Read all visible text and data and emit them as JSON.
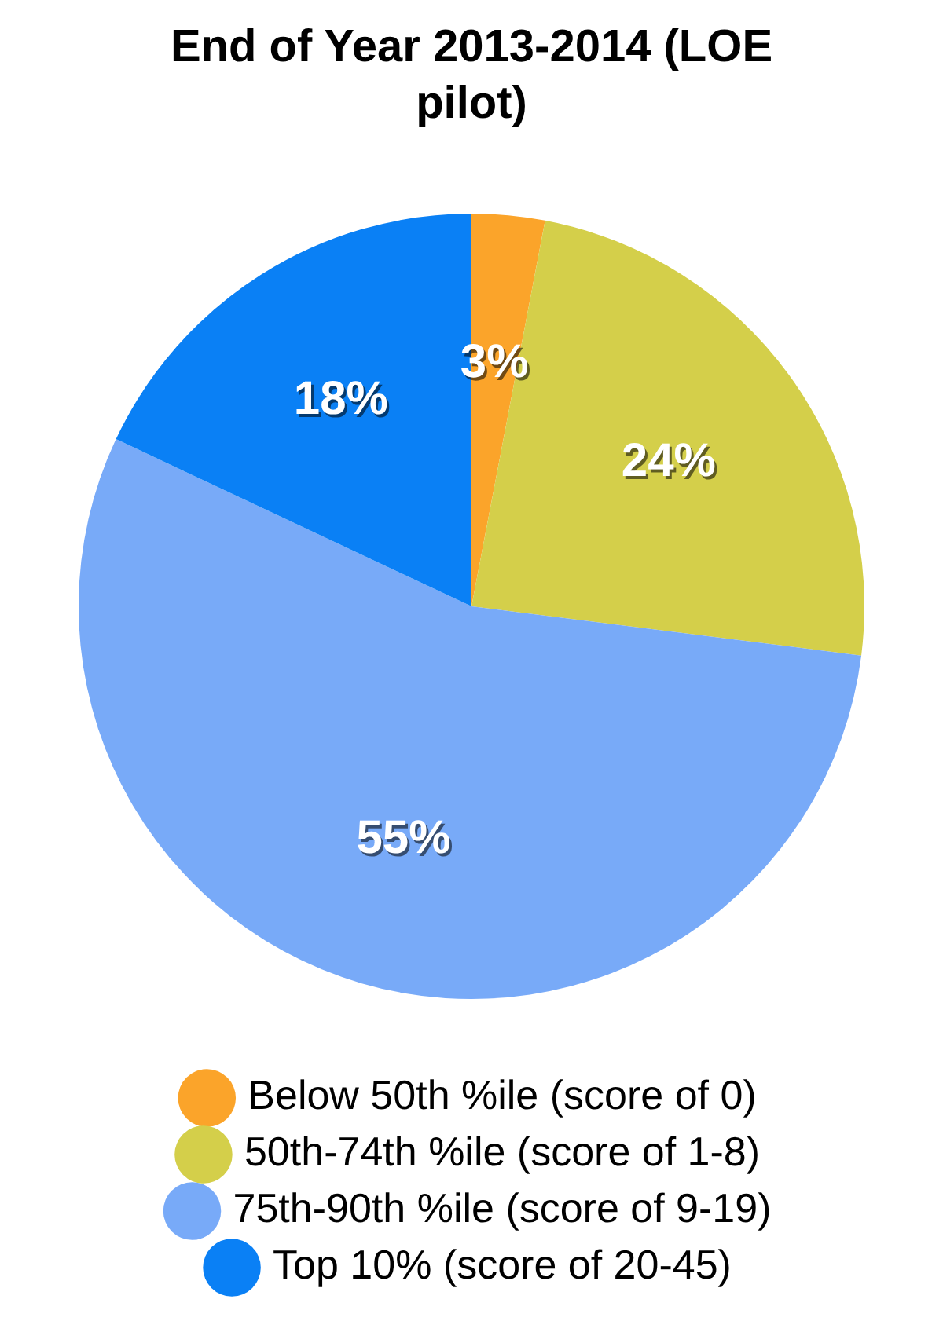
{
  "chart_data": {
    "type": "pie",
    "title": "End of Year 2013-2014 (LOE pilot)",
    "categories": [
      "Below 50th %ile (score of 0)",
      "50th-74th %ile (score of 1-8)",
      "75th-90th %ile (score of 9-19)",
      "Top 10% (score of 20-45)"
    ],
    "values": [
      3,
      24,
      55,
      18
    ],
    "colors": [
      "#fba42a",
      "#d4cf4a",
      "#78aaf8",
      "#0a80f5"
    ],
    "value_labels": [
      "3%",
      "24%",
      "55%",
      "18%"
    ],
    "legend": "bottom"
  }
}
